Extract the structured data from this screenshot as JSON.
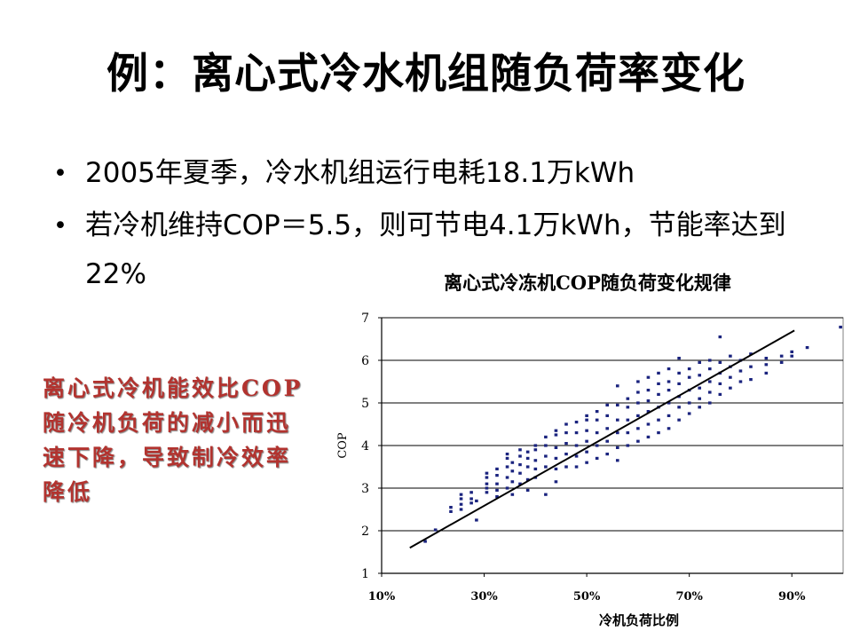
{
  "slide": {
    "title": "例：离心式冷水机组随负荷率变化",
    "bullets": [
      "2005年夏季，冷水机组运行电耗18.1万kWh",
      "若冷机维持COP＝5.5，则可节电4.1万kWh，节能率达到22%"
    ],
    "note": "离心式冷机能效比COP随冷机负荷的减小而迅速下降，导致制冷效率降低"
  },
  "colors": {
    "note": "#b2332f",
    "points": "#1a237e",
    "trendline": "#000000"
  },
  "chart_data": {
    "type": "scatter",
    "title": "离心式冷冻机COP随负荷变化规律",
    "xlabel": "冷机负荷比例",
    "ylabel": "COP",
    "xlim": [
      0.1,
      1.0
    ],
    "ylim": [
      1,
      7
    ],
    "x_ticks": [
      0.1,
      0.3,
      0.5,
      0.7,
      0.9
    ],
    "x_tick_labels": [
      "10%",
      "30%",
      "50%",
      "70%",
      "90%"
    ],
    "y_ticks": [
      1,
      2,
      3,
      4,
      5,
      6,
      7
    ],
    "y_tick_labels": [
      "1",
      "2",
      "3",
      "4",
      "5",
      "6",
      "7"
    ],
    "grid": "horizontal",
    "legend": "none",
    "series": [
      {
        "points": [
          [
            0.185,
            1.75
          ],
          [
            0.205,
            2.02
          ],
          [
            0.235,
            2.45
          ],
          [
            0.235,
            2.55
          ],
          [
            0.255,
            2.5
          ],
          [
            0.255,
            2.62
          ],
          [
            0.255,
            2.75
          ],
          [
            0.255,
            2.85
          ],
          [
            0.275,
            2.65
          ],
          [
            0.275,
            2.75
          ],
          [
            0.275,
            2.9
          ],
          [
            0.285,
            2.25
          ],
          [
            0.285,
            2.7
          ],
          [
            0.305,
            2.9
          ],
          [
            0.305,
            3.0
          ],
          [
            0.305,
            3.1
          ],
          [
            0.305,
            3.25
          ],
          [
            0.305,
            3.35
          ],
          [
            0.325,
            2.8
          ],
          [
            0.325,
            2.95
          ],
          [
            0.325,
            3.1
          ],
          [
            0.325,
            3.3
          ],
          [
            0.325,
            3.45
          ],
          [
            0.345,
            3.0
          ],
          [
            0.345,
            3.25
          ],
          [
            0.345,
            3.5
          ],
          [
            0.345,
            3.7
          ],
          [
            0.345,
            3.8
          ],
          [
            0.355,
            2.85
          ],
          [
            0.355,
            3.15
          ],
          [
            0.355,
            3.4
          ],
          [
            0.355,
            3.6
          ],
          [
            0.37,
            3.1
          ],
          [
            0.37,
            3.35
          ],
          [
            0.37,
            3.55
          ],
          [
            0.37,
            3.75
          ],
          [
            0.37,
            3.9
          ],
          [
            0.385,
            2.95
          ],
          [
            0.385,
            3.2
          ],
          [
            0.385,
            3.5
          ],
          [
            0.385,
            3.7
          ],
          [
            0.385,
            3.85
          ],
          [
            0.4,
            3.25
          ],
          [
            0.4,
            3.45
          ],
          [
            0.4,
            3.65
          ],
          [
            0.4,
            3.9
          ],
          [
            0.4,
            4.0
          ],
          [
            0.42,
            2.85
          ],
          [
            0.42,
            3.5
          ],
          [
            0.42,
            3.75
          ],
          [
            0.42,
            4.0
          ],
          [
            0.42,
            4.2
          ],
          [
            0.44,
            3.15
          ],
          [
            0.44,
            3.45
          ],
          [
            0.44,
            3.7
          ],
          [
            0.44,
            3.95
          ],
          [
            0.44,
            4.25
          ],
          [
            0.44,
            4.35
          ],
          [
            0.46,
            3.5
          ],
          [
            0.46,
            3.8
          ],
          [
            0.46,
            4.05
          ],
          [
            0.46,
            4.3
          ],
          [
            0.46,
            4.5
          ],
          [
            0.48,
            3.5
          ],
          [
            0.48,
            3.75
          ],
          [
            0.48,
            4.0
          ],
          [
            0.48,
            4.3
          ],
          [
            0.48,
            4.55
          ],
          [
            0.5,
            3.6
          ],
          [
            0.5,
            3.85
          ],
          [
            0.5,
            4.1
          ],
          [
            0.5,
            4.35
          ],
          [
            0.5,
            4.6
          ],
          [
            0.5,
            4.7
          ],
          [
            0.52,
            3.7
          ],
          [
            0.52,
            4.0
          ],
          [
            0.52,
            4.3
          ],
          [
            0.52,
            4.6
          ],
          [
            0.52,
            4.8
          ],
          [
            0.54,
            3.8
          ],
          [
            0.54,
            4.1
          ],
          [
            0.54,
            4.4
          ],
          [
            0.54,
            4.7
          ],
          [
            0.54,
            4.95
          ],
          [
            0.56,
            3.65
          ],
          [
            0.56,
            3.95
          ],
          [
            0.56,
            4.3
          ],
          [
            0.56,
            4.6
          ],
          [
            0.56,
            4.95
          ],
          [
            0.56,
            5.4
          ],
          [
            0.58,
            4.0
          ],
          [
            0.58,
            4.3
          ],
          [
            0.58,
            4.6
          ],
          [
            0.58,
            4.9
          ],
          [
            0.58,
            5.1
          ],
          [
            0.6,
            4.1
          ],
          [
            0.6,
            4.4
          ],
          [
            0.6,
            4.7
          ],
          [
            0.6,
            5.0
          ],
          [
            0.6,
            5.25
          ],
          [
            0.6,
            5.5
          ],
          [
            0.62,
            4.2
          ],
          [
            0.62,
            4.5
          ],
          [
            0.62,
            4.8
          ],
          [
            0.62,
            5.05
          ],
          [
            0.62,
            5.3
          ],
          [
            0.62,
            5.6
          ],
          [
            0.64,
            4.3
          ],
          [
            0.64,
            4.6
          ],
          [
            0.64,
            4.9
          ],
          [
            0.64,
            5.2
          ],
          [
            0.64,
            5.45
          ],
          [
            0.64,
            5.7
          ],
          [
            0.66,
            4.4
          ],
          [
            0.66,
            4.7
          ],
          [
            0.66,
            5.0
          ],
          [
            0.66,
            5.3
          ],
          [
            0.66,
            5.5
          ],
          [
            0.66,
            5.8
          ],
          [
            0.68,
            4.6
          ],
          [
            0.68,
            4.9
          ],
          [
            0.68,
            5.15
          ],
          [
            0.68,
            5.45
          ],
          [
            0.68,
            5.7
          ],
          [
            0.68,
            6.05
          ],
          [
            0.7,
            4.75
          ],
          [
            0.7,
            5.0
          ],
          [
            0.7,
            5.3
          ],
          [
            0.7,
            5.6
          ],
          [
            0.7,
            5.8
          ],
          [
            0.72,
            4.9
          ],
          [
            0.72,
            5.1
          ],
          [
            0.72,
            5.35
          ],
          [
            0.72,
            5.65
          ],
          [
            0.72,
            5.95
          ],
          [
            0.74,
            5.0
          ],
          [
            0.74,
            5.25
          ],
          [
            0.74,
            5.5
          ],
          [
            0.74,
            5.8
          ],
          [
            0.74,
            6.0
          ],
          [
            0.76,
            5.2
          ],
          [
            0.76,
            5.45
          ],
          [
            0.76,
            5.7
          ],
          [
            0.76,
            5.95
          ],
          [
            0.76,
            6.55
          ],
          [
            0.78,
            5.35
          ],
          [
            0.78,
            5.6
          ],
          [
            0.78,
            5.85
          ],
          [
            0.78,
            6.1
          ],
          [
            0.8,
            5.5
          ],
          [
            0.8,
            5.75
          ],
          [
            0.8,
            6.0
          ],
          [
            0.82,
            5.55
          ],
          [
            0.82,
            5.85
          ],
          [
            0.82,
            6.15
          ],
          [
            0.85,
            5.7
          ],
          [
            0.85,
            5.9
          ],
          [
            0.85,
            6.05
          ],
          [
            0.88,
            5.95
          ],
          [
            0.88,
            6.1
          ],
          [
            0.9,
            6.1
          ],
          [
            0.9,
            6.2
          ],
          [
            0.93,
            6.3
          ],
          [
            0.995,
            6.78
          ]
        ]
      }
    ],
    "trendline": {
      "x": [
        0.155,
        0.905
      ],
      "y": [
        1.6,
        6.7
      ]
    }
  }
}
